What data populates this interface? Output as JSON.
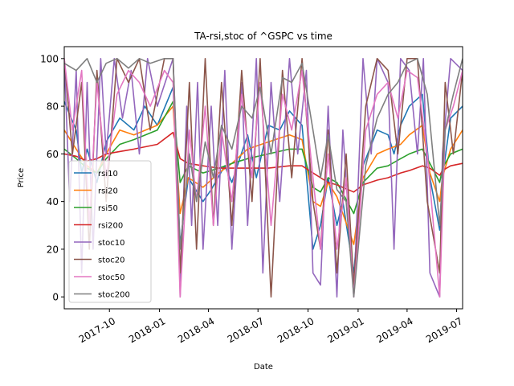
{
  "chart_data": {
    "type": "line",
    "title": "TA-rsi,stoc of ^GSPC vs time",
    "xlabel": "Date",
    "ylabel": "Price",
    "xlim": [
      "2017-07-10",
      "2019-07-12"
    ],
    "ylim": [
      -5,
      105
    ],
    "x_ticks": [
      {
        "date": "2017-10-01",
        "label": "2017-10"
      },
      {
        "date": "2018-01-01",
        "label": "2018-01"
      },
      {
        "date": "2018-04-01",
        "label": "2018-04"
      },
      {
        "date": "2018-07-01",
        "label": "2018-07"
      },
      {
        "date": "2018-10-01",
        "label": "2018-10"
      },
      {
        "date": "2019-01-01",
        "label": "2019-01"
      },
      {
        "date": "2019-04-01",
        "label": "2019-04"
      },
      {
        "date": "2019-07-01",
        "label": "2019-07"
      }
    ],
    "y_ticks": [
      0,
      20,
      40,
      60,
      80,
      100
    ],
    "grid": false,
    "legend_position": "lower-left",
    "series": [
      {
        "name": "rsi10",
        "color": "#1f77b4",
        "line_width": 1.6,
        "dates": [
          "2017-07-10",
          "2017-08-01",
          "2017-08-11",
          "2017-08-21",
          "2017-09-08",
          "2017-09-25",
          "2017-10-20",
          "2017-11-15",
          "2017-12-05",
          "2017-12-28",
          "2018-01-26",
          "2018-02-08",
          "2018-02-23",
          "2018-03-22",
          "2018-04-06",
          "2018-05-01",
          "2018-05-14",
          "2018-06-12",
          "2018-06-28",
          "2018-07-20",
          "2018-08-10",
          "2018-08-28",
          "2018-09-20",
          "2018-10-10",
          "2018-10-24",
          "2018-11-07",
          "2018-11-23",
          "2018-12-04",
          "2018-12-24",
          "2019-01-10",
          "2019-02-05",
          "2019-02-25",
          "2019-03-08",
          "2019-03-20",
          "2019-04-05",
          "2019-04-29",
          "2019-05-13",
          "2019-05-31",
          "2019-06-05",
          "2019-06-20",
          "2019-07-12"
        ],
        "values": [
          82,
          70,
          52,
          62,
          48,
          65,
          75,
          70,
          80,
          72,
          88,
          22,
          50,
          40,
          45,
          55,
          48,
          68,
          50,
          72,
          70,
          78,
          72,
          20,
          30,
          50,
          30,
          40,
          10,
          55,
          70,
          68,
          60,
          72,
          80,
          85,
          50,
          28,
          50,
          75,
          80
        ]
      },
      {
        "name": "rsi20",
        "color": "#ff7f0e",
        "line_width": 1.6,
        "dates": [
          "2017-07-10",
          "2017-08-01",
          "2017-08-21",
          "2017-09-08",
          "2017-09-25",
          "2017-10-20",
          "2017-11-15",
          "2017-12-28",
          "2018-01-26",
          "2018-02-08",
          "2018-02-23",
          "2018-03-22",
          "2018-04-20",
          "2018-05-14",
          "2018-06-12",
          "2018-07-20",
          "2018-08-28",
          "2018-09-20",
          "2018-10-10",
          "2018-10-24",
          "2018-11-07",
          "2018-11-23",
          "2018-12-24",
          "2019-01-10",
          "2019-02-05",
          "2019-02-25",
          "2019-03-20",
          "2019-04-05",
          "2019-04-29",
          "2019-05-13",
          "2019-05-31",
          "2019-06-05",
          "2019-06-20",
          "2019-07-12"
        ],
        "values": [
          70,
          62,
          55,
          52,
          60,
          70,
          68,
          72,
          80,
          35,
          50,
          46,
          52,
          56,
          62,
          65,
          68,
          66,
          40,
          38,
          48,
          42,
          22,
          50,
          60,
          62,
          64,
          68,
          72,
          52,
          40,
          50,
          62,
          70
        ]
      },
      {
        "name": "rsi50",
        "color": "#2ca02c",
        "line_width": 1.6,
        "dates": [
          "2017-07-10",
          "2017-08-01",
          "2017-08-21",
          "2017-09-08",
          "2017-09-25",
          "2017-10-20",
          "2017-11-15",
          "2017-12-28",
          "2018-01-26",
          "2018-02-08",
          "2018-02-23",
          "2018-03-22",
          "2018-04-20",
          "2018-05-14",
          "2018-06-12",
          "2018-07-20",
          "2018-08-28",
          "2018-09-20",
          "2018-10-10",
          "2018-10-24",
          "2018-11-07",
          "2018-11-23",
          "2018-12-24",
          "2019-01-10",
          "2019-02-05",
          "2019-02-25",
          "2019-03-20",
          "2019-04-05",
          "2019-04-29",
          "2019-05-13",
          "2019-05-31",
          "2019-06-05",
          "2019-06-20",
          "2019-07-12"
        ],
        "values": [
          62,
          58,
          54,
          52,
          58,
          64,
          66,
          70,
          82,
          48,
          55,
          52,
          54,
          56,
          58,
          60,
          62,
          62,
          46,
          44,
          50,
          48,
          35,
          48,
          54,
          55,
          58,
          60,
          62,
          56,
          48,
          54,
          60,
          62
        ]
      },
      {
        "name": "rsi200",
        "color": "#d62728",
        "line_width": 1.6,
        "dates": [
          "2017-07-10",
          "2017-08-01",
          "2017-08-21",
          "2017-09-08",
          "2017-09-25",
          "2017-10-20",
          "2017-11-15",
          "2017-12-28",
          "2018-01-26",
          "2018-02-08",
          "2018-02-23",
          "2018-03-22",
          "2018-04-20",
          "2018-05-14",
          "2018-06-12",
          "2018-07-20",
          "2018-08-28",
          "2018-09-20",
          "2018-10-10",
          "2018-10-24",
          "2018-11-07",
          "2018-11-23",
          "2018-12-24",
          "2019-01-10",
          "2019-02-05",
          "2019-02-25",
          "2019-03-20",
          "2019-04-05",
          "2019-04-29",
          "2019-05-13",
          "2019-05-31",
          "2019-06-05",
          "2019-06-20",
          "2019-07-12"
        ],
        "values": [
          60,
          59,
          57,
          58,
          60,
          61,
          62,
          64,
          69,
          58,
          56,
          55,
          54,
          54,
          54,
          54,
          55,
          55,
          52,
          50,
          48,
          47,
          44,
          47,
          49,
          50,
          52,
          53,
          55,
          54,
          51,
          53,
          55,
          56
        ]
      },
      {
        "name": "stoc10",
        "color": "#9467bd",
        "line_width": 1.6,
        "dates": [
          "2017-07-10",
          "2017-07-20",
          "2017-08-01",
          "2017-08-11",
          "2017-08-21",
          "2017-09-01",
          "2017-09-15",
          "2017-09-25",
          "2017-10-10",
          "2017-10-25",
          "2017-11-10",
          "2017-11-25",
          "2017-12-10",
          "2017-12-28",
          "2018-01-26",
          "2018-02-05",
          "2018-02-08",
          "2018-02-20",
          "2018-03-01",
          "2018-03-12",
          "2018-03-22",
          "2018-04-06",
          "2018-04-18",
          "2018-05-01",
          "2018-05-14",
          "2018-06-01",
          "2018-06-12",
          "2018-06-28",
          "2018-07-10",
          "2018-07-25",
          "2018-08-10",
          "2018-08-28",
          "2018-09-12",
          "2018-09-28",
          "2018-10-10",
          "2018-10-24",
          "2018-11-07",
          "2018-11-23",
          "2018-12-04",
          "2018-12-24",
          "2019-01-10",
          "2019-01-25",
          "2019-02-05",
          "2019-02-25",
          "2019-03-08",
          "2019-03-20",
          "2019-04-05",
          "2019-04-20",
          "2019-05-01",
          "2019-05-13",
          "2019-05-31",
          "2019-06-05",
          "2019-06-20",
          "2019-07-12"
        ],
        "values": [
          100,
          40,
          95,
          10,
          90,
          20,
          100,
          60,
          100,
          75,
          95,
          60,
          100,
          80,
          100,
          40,
          0,
          80,
          30,
          90,
          20,
          80,
          30,
          95,
          20,
          90,
          30,
          100,
          10,
          90,
          40,
          100,
          60,
          95,
          10,
          5,
          80,
          0,
          70,
          0,
          100,
          60,
          100,
          90,
          20,
          100,
          95,
          60,
          100,
          10,
          0,
          60,
          100,
          95
        ]
      },
      {
        "name": "stoc20",
        "color": "#8c564b",
        "line_width": 1.6,
        "dates": [
          "2017-07-10",
          "2017-07-25",
          "2017-08-11",
          "2017-08-25",
          "2017-09-08",
          "2017-09-25",
          "2017-10-15",
          "2017-11-05",
          "2017-11-25",
          "2017-12-15",
          "2018-01-10",
          "2018-01-26",
          "2018-02-08",
          "2018-02-25",
          "2018-03-10",
          "2018-03-26",
          "2018-04-10",
          "2018-04-25",
          "2018-05-14",
          "2018-06-01",
          "2018-06-20",
          "2018-07-05",
          "2018-07-25",
          "2018-08-15",
          "2018-09-01",
          "2018-09-20",
          "2018-10-10",
          "2018-10-24",
          "2018-11-07",
          "2018-11-23",
          "2018-12-10",
          "2018-12-24",
          "2019-01-15",
          "2019-02-05",
          "2019-02-25",
          "2019-03-15",
          "2019-04-01",
          "2019-04-20",
          "2019-05-08",
          "2019-05-31",
          "2019-06-10",
          "2019-06-25",
          "2019-07-12"
        ],
        "values": [
          100,
          60,
          90,
          20,
          95,
          40,
          100,
          90,
          100,
          70,
          100,
          100,
          10,
          90,
          20,
          100,
          30,
          90,
          30,
          95,
          40,
          100,
          0,
          95,
          50,
          100,
          40,
          20,
          70,
          10,
          60,
          5,
          80,
          100,
          95,
          60,
          100,
          100,
          40,
          10,
          90,
          60,
          95
        ]
      },
      {
        "name": "stoc50",
        "color": "#e377c2",
        "line_width": 1.6,
        "dates": [
          "2017-07-10",
          "2017-07-25",
          "2017-08-11",
          "2017-08-25",
          "2017-09-08",
          "2017-09-25",
          "2017-10-15",
          "2017-11-05",
          "2017-11-25",
          "2017-12-15",
          "2018-01-10",
          "2018-01-26",
          "2018-02-08",
          "2018-02-25",
          "2018-03-10",
          "2018-03-26",
          "2018-04-10",
          "2018-04-25",
          "2018-05-14",
          "2018-06-01",
          "2018-06-20",
          "2018-07-05",
          "2018-07-25",
          "2018-08-15",
          "2018-09-01",
          "2018-09-20",
          "2018-10-10",
          "2018-10-24",
          "2018-11-07",
          "2018-11-23",
          "2018-12-10",
          "2018-12-24",
          "2019-01-15",
          "2019-02-05",
          "2019-02-25",
          "2019-03-15",
          "2019-04-01",
          "2019-04-20",
          "2019-05-08",
          "2019-05-31",
          "2019-06-10",
          "2019-06-25",
          "2019-07-12"
        ],
        "values": [
          100,
          70,
          95,
          30,
          90,
          50,
          85,
          95,
          90,
          80,
          95,
          90,
          0,
          70,
          40,
          80,
          30,
          70,
          40,
          85,
          50,
          90,
          30,
          85,
          70,
          95,
          50,
          20,
          60,
          20,
          50,
          0,
          70,
          85,
          90,
          75,
          95,
          92,
          60,
          0,
          70,
          80,
          95
        ]
      },
      {
        "name": "stoc200",
        "color": "#7f7f7f",
        "line_width": 1.6,
        "dates": [
          "2017-07-10",
          "2017-08-01",
          "2017-08-21",
          "2017-09-08",
          "2017-09-25",
          "2017-10-15",
          "2017-11-05",
          "2017-11-25",
          "2017-12-15",
          "2018-01-10",
          "2018-01-26",
          "2018-02-08",
          "2018-02-25",
          "2018-03-10",
          "2018-03-26",
          "2018-04-10",
          "2018-04-25",
          "2018-05-14",
          "2018-06-01",
          "2018-06-20",
          "2018-07-05",
          "2018-07-25",
          "2018-08-15",
          "2018-09-01",
          "2018-09-20",
          "2018-10-10",
          "2018-10-24",
          "2018-11-07",
          "2018-11-23",
          "2018-12-10",
          "2018-12-24",
          "2019-01-15",
          "2019-02-05",
          "2019-02-25",
          "2019-03-15",
          "2019-04-01",
          "2019-04-20",
          "2019-05-08",
          "2019-05-31",
          "2019-06-10",
          "2019-06-25",
          "2019-07-12"
        ],
        "values": [
          98,
          95,
          100,
          90,
          98,
          100,
          96,
          100,
          98,
          100,
          100,
          20,
          60,
          40,
          65,
          50,
          72,
          62,
          80,
          75,
          88,
          60,
          92,
          90,
          98,
          70,
          50,
          68,
          45,
          40,
          0,
          55,
          75,
          85,
          90,
          98,
          100,
          85,
          30,
          70,
          85,
          100
        ]
      }
    ]
  }
}
